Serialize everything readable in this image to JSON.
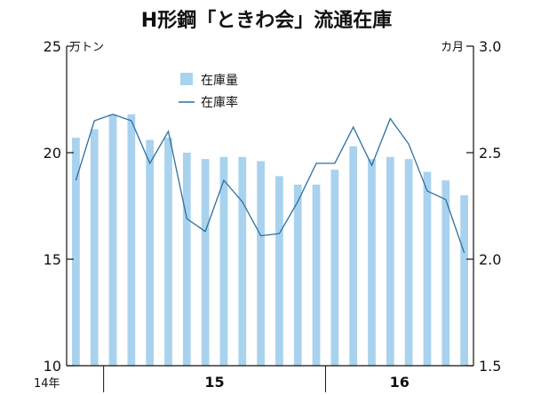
{
  "chart_data": {
    "type": "bar",
    "title": "H形鋼「ときわ会」流通在庫",
    "left_unit": "万トン",
    "right_unit": "カ月",
    "left_ylim": [
      10,
      25
    ],
    "left_ticks": [
      "10",
      "15",
      "20",
      "25"
    ],
    "right_ylim": [
      1.5,
      3.0
    ],
    "right_ticks": [
      "1.5",
      "2.0",
      "2.5",
      "3.0"
    ],
    "x_year_labels": [
      "14年",
      "15",
      "16"
    ],
    "grid": false,
    "legend_position": "top-center",
    "colors": {
      "bar": "#a9d2ee",
      "line": "#2d6f9e"
    },
    "series": [
      {
        "name": "在庫量",
        "type": "bar",
        "axis": "left",
        "values": [
          20.7,
          21.1,
          21.8,
          21.8,
          20.6,
          20.7,
          20.0,
          19.7,
          19.8,
          19.8,
          19.6,
          18.9,
          18.5,
          18.5,
          19.2,
          20.3,
          19.7,
          19.8,
          19.7,
          19.1,
          18.7,
          18.0
        ]
      },
      {
        "name": "在庫率",
        "type": "line",
        "axis": "right",
        "values": [
          2.37,
          2.65,
          2.68,
          2.65,
          2.45,
          2.6,
          2.19,
          2.13,
          2.37,
          2.27,
          2.11,
          2.12,
          2.27,
          2.45,
          2.45,
          2.62,
          2.44,
          2.66,
          2.54,
          2.32,
          2.28,
          2.03
        ]
      }
    ]
  }
}
